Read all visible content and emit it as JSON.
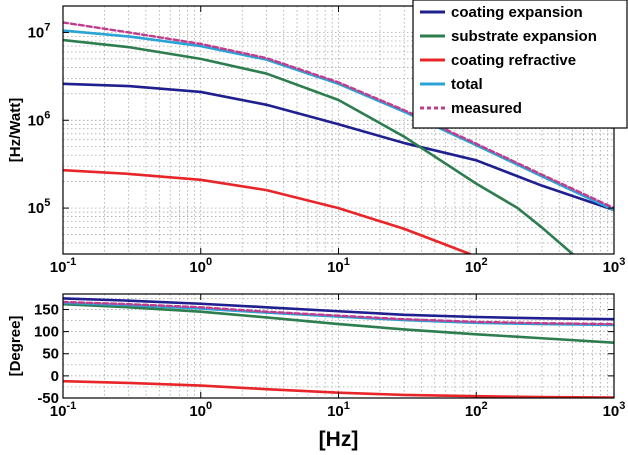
{
  "chart_data": [
    {
      "type": "line",
      "panel": "magnitude",
      "xscale": "log",
      "yscale": "log",
      "xlim": [
        0.1,
        1000
      ],
      "ylim": [
        30000,
        20000000
      ],
      "xlabel": "",
      "ylabel": "[Hz/Watt]",
      "grid": true,
      "legend_position": "top-right",
      "x_ticks": [
        {
          "value": 0.1,
          "base": "10",
          "exp": "-1"
        },
        {
          "value": 1,
          "base": "10",
          "exp": "0"
        },
        {
          "value": 10,
          "base": "10",
          "exp": "1"
        },
        {
          "value": 100,
          "base": "10",
          "exp": "2"
        },
        {
          "value": 1000,
          "base": "10",
          "exp": "3"
        }
      ],
      "y_ticks": [
        {
          "value": 100000,
          "base": "10",
          "exp": "5"
        },
        {
          "value": 1000000,
          "base": "10",
          "exp": "6"
        },
        {
          "value": 10000000,
          "base": "10",
          "exp": "7"
        }
      ],
      "series": [
        {
          "name": "coating expansion",
          "color": "#1f1f8f",
          "dash": "solid",
          "x": [
            0.1,
            0.3,
            1,
            3,
            10,
            30,
            100,
            300,
            1000
          ],
          "y": [
            2600000,
            2450000,
            2100000,
            1500000,
            900000,
            550000,
            350000,
            180000,
            95000
          ]
        },
        {
          "name": "substrate expansion",
          "color": "#2e7d4f",
          "dash": "solid",
          "x": [
            0.1,
            0.3,
            1,
            3,
            10,
            30,
            100,
            200,
            300,
            500
          ],
          "y": [
            8200000,
            6800000,
            5000000,
            3400000,
            1700000,
            650000,
            190000,
            100000,
            60000,
            30000
          ]
        },
        {
          "name": "coating refractive",
          "color": "#e8262a",
          "dash": "solid",
          "x": [
            0.1,
            0.3,
            1,
            3,
            10,
            30,
            90
          ],
          "y": [
            270000,
            245000,
            210000,
            160000,
            100000,
            58000,
            30000
          ]
        },
        {
          "name": "total",
          "color": "#2aa3d6",
          "dash": "solid",
          "x": [
            0.1,
            0.3,
            1,
            3,
            10,
            30,
            100,
            300,
            1000
          ],
          "y": [
            10500000,
            9000000,
            7000000,
            4900000,
            2600000,
            1250000,
            520000,
            230000,
            95000
          ]
        },
        {
          "name": "measured",
          "color": "#c23c8c",
          "dash": "dashed",
          "x": [
            0.1,
            0.3,
            1,
            3,
            10,
            30,
            100,
            300,
            1000
          ],
          "y": [
            13000000,
            10000000,
            7400000,
            5100000,
            2700000,
            1300000,
            540000,
            240000,
            100000
          ]
        }
      ]
    },
    {
      "type": "line",
      "panel": "phase",
      "xscale": "log",
      "yscale": "linear",
      "xlim": [
        0.1,
        1000
      ],
      "ylim": [
        -50,
        185
      ],
      "xlabel": "[Hz]",
      "ylabel": "[Degree]",
      "grid": true,
      "x_ticks": [
        {
          "value": 0.1,
          "base": "10",
          "exp": "-1"
        },
        {
          "value": 1,
          "base": "10",
          "exp": "0"
        },
        {
          "value": 10,
          "base": "10",
          "exp": "1"
        },
        {
          "value": 100,
          "base": "10",
          "exp": "2"
        },
        {
          "value": 1000,
          "base": "10",
          "exp": "3"
        }
      ],
      "y_ticks": [
        {
          "value": 150,
          "label": "150"
        },
        {
          "value": 100,
          "label": "100"
        },
        {
          "value": 50,
          "label": "50"
        },
        {
          "value": 0,
          "label": "0"
        },
        {
          "value": -50,
          "label": "-50"
        }
      ],
      "series": [
        {
          "name": "coating expansion",
          "color": "#1f1f8f",
          "dash": "solid",
          "x": [
            0.1,
            0.3,
            1,
            3,
            10,
            30,
            100,
            300,
            1000
          ],
          "y": [
            175,
            170,
            163,
            155,
            146,
            138,
            133,
            130,
            128
          ]
        },
        {
          "name": "substrate expansion",
          "color": "#2e7d4f",
          "dash": "solid",
          "x": [
            0.1,
            0.3,
            1,
            3,
            10,
            30,
            100,
            300,
            1000
          ],
          "y": [
            162,
            155,
            145,
            132,
            117,
            105,
            94,
            85,
            75
          ]
        },
        {
          "name": "coating refractive",
          "color": "#e8262a",
          "dash": "solid",
          "x": [
            0.1,
            0.3,
            1,
            3,
            10,
            30,
            100,
            300,
            1000
          ],
          "y": [
            -12,
            -16,
            -22,
            -30,
            -38,
            -43,
            -46,
            -48,
            -49
          ]
        },
        {
          "name": "total",
          "color": "#2aa3d6",
          "dash": "solid",
          "x": [
            0.1,
            0.3,
            1,
            3,
            10,
            30,
            100,
            300,
            1000
          ],
          "y": [
            165,
            160,
            152,
            143,
            134,
            126,
            120,
            117,
            115
          ]
        },
        {
          "name": "measured",
          "color": "#c23c8c",
          "dash": "dashed",
          "x": [
            0.1,
            0.3,
            1,
            3,
            10,
            30,
            100,
            300,
            1000
          ],
          "y": [
            167,
            162,
            155,
            145,
            136,
            128,
            122,
            119,
            117
          ]
        }
      ]
    }
  ]
}
